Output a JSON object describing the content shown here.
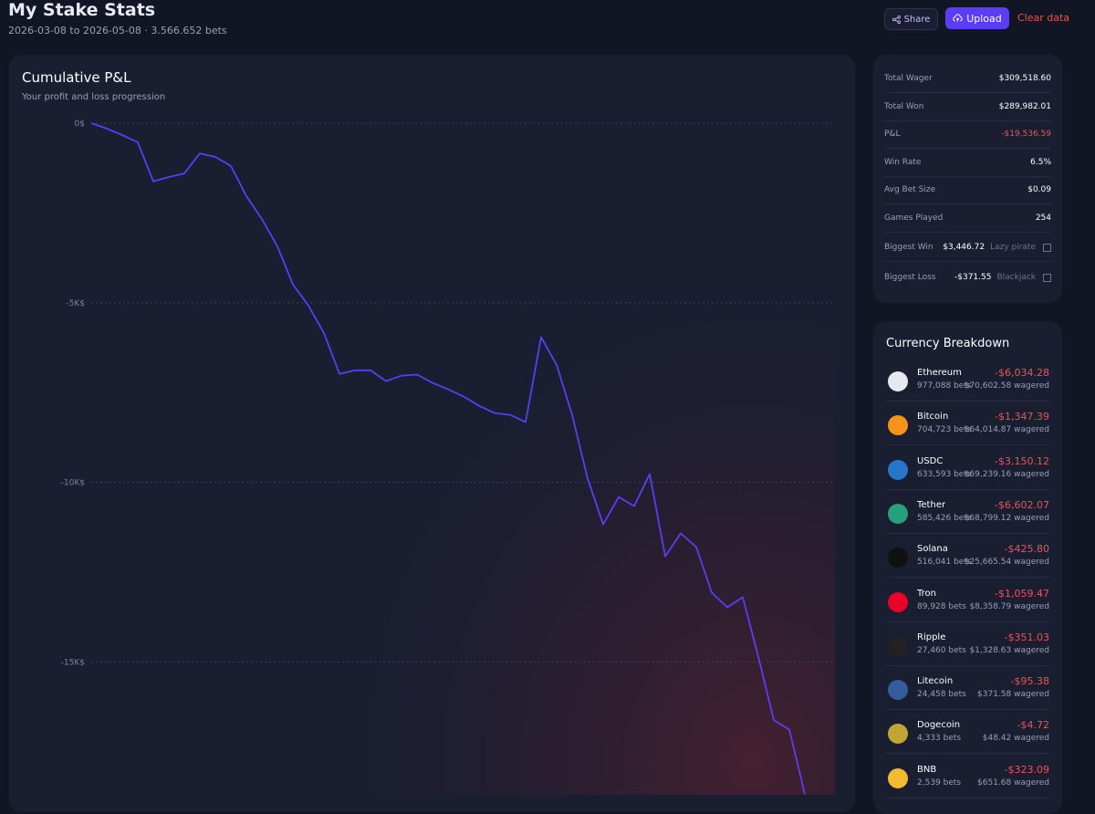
{
  "header": {
    "title": "My Stake Stats",
    "subtitle": "2026-03-08 to 2026-05-08 · 3.566.652 bets",
    "share": "Share",
    "upload": "Upload",
    "clear": "Clear data"
  },
  "chart_data": {
    "type": "line",
    "title": "Cumulative P&L",
    "subtitle": "Your profit and loss progression",
    "ylim": [
      -18700,
      0
    ],
    "yticks": [
      {
        "value": 0,
        "label": "0$"
      },
      {
        "value": -5000,
        "label": "-5K$"
      },
      {
        "value": -10000,
        "label": "-10K$"
      },
      {
        "value": -15000,
        "label": "-15K$"
      }
    ],
    "grid": true,
    "series": [
      {
        "color": "#5b3df5",
        "values": [
          0,
          -150,
          -330,
          -530,
          -1620,
          -1500,
          -1400,
          -840,
          -940,
          -1190,
          -2030,
          -2670,
          -3430,
          -4490,
          -5080,
          -5840,
          -6980,
          -6880,
          -6880,
          -7180,
          -7030,
          -7000,
          -7230,
          -7410,
          -7610,
          -7870,
          -8070,
          -8120,
          -8320,
          -5960,
          -6730,
          -8120,
          -9900,
          -11170,
          -10410,
          -10660,
          -9770,
          -12060,
          -11420,
          -11800,
          -13070,
          -13480,
          -13200,
          -14850,
          -16620,
          -16880,
          -18680
        ]
      }
    ]
  },
  "stats": {
    "rows": [
      [
        "Total Wager",
        "$309,518.60"
      ],
      [
        "Total Won",
        "$289,982.01"
      ],
      [
        "P&L",
        "-$19,536.59"
      ],
      [
        "Win Rate",
        "6.5%"
      ],
      [
        "Avg Bet Size",
        "$0.09"
      ],
      [
        "Games Played",
        "254"
      ]
    ],
    "biggest": [
      [
        "Biggest Win",
        "$3,446.72",
        "Lazy pirate"
      ],
      [
        "Biggest Loss",
        "-$371.55",
        "Blackjack"
      ]
    ]
  },
  "currencies": {
    "title": "Currency Breakdown",
    "items": [
      [
        "Ethereum",
        "977,088 bets",
        "-$6,034.28",
        "$70,602.58 wagered"
      ],
      [
        "Bitcoin",
        "704,723 bets",
        "-$1,347.39",
        "$64,014.87 wagered"
      ],
      [
        "USDC",
        "633,593 bets",
        "-$3,150.12",
        "$69,239.16 wagered"
      ],
      [
        "Tether",
        "585,426 bets",
        "-$6,602.07",
        "$68,799.12 wagered"
      ],
      [
        "Solana",
        "516,041 bets",
        "-$425.80",
        "$25,665.54 wagered"
      ],
      [
        "Tron",
        "89,928 bets",
        "-$1,059.47",
        "$8,358.79 wagered"
      ],
      [
        "Ripple",
        "27,460 bets",
        "-$351.03",
        "$1,328.63 wagered"
      ],
      [
        "Litecoin",
        "24,458 bets",
        "-$95.38",
        "$371.58 wagered"
      ],
      [
        "Dogecoin",
        "4,333 bets",
        "-$4.72",
        "$48.42 wagered"
      ],
      [
        "BNB",
        "2,539 bets",
        "-$323.09",
        "$651.68 wagered"
      ]
    ]
  }
}
